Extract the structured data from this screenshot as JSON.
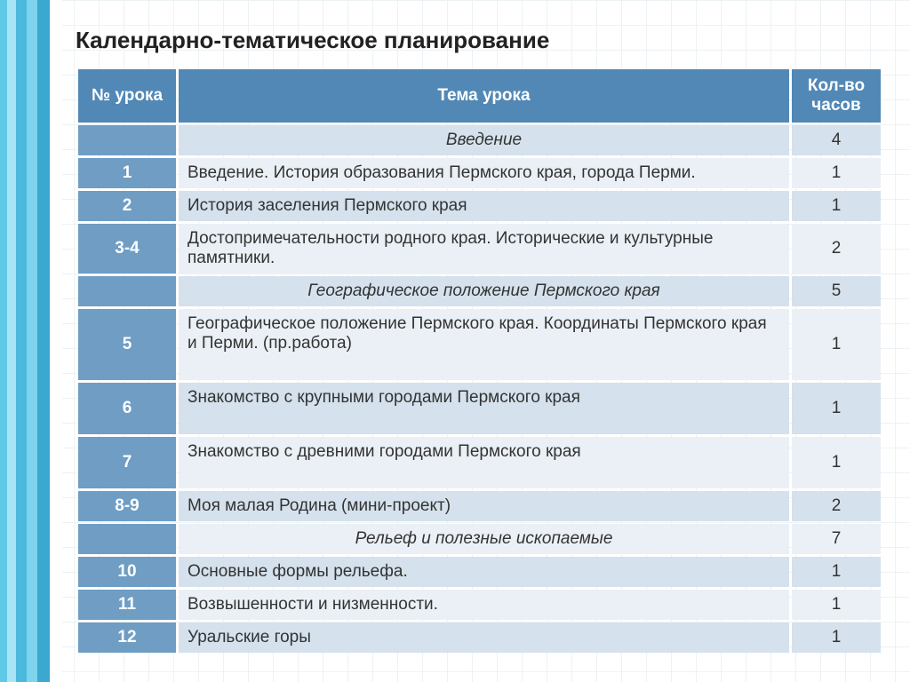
{
  "title": "Календарно-тематическое планирование",
  "colors": {
    "header_bg": "#5288b6",
    "subheader_bg": "#6f9dc4",
    "row_odd_bg": "#d5e1ec",
    "row_even_bg": "#eaf0f6",
    "header_text": "#ffffff",
    "body_text": "#363636"
  },
  "columns": {
    "num": "№ урока",
    "topic": "Тема урока",
    "hours": "Кол-во часов"
  },
  "rows": [
    {
      "num": "",
      "topic": "Введение",
      "hours": "4",
      "section": true
    },
    {
      "num": "1",
      "topic": "Введение. История образования Пермского края, города Перми.",
      "hours": "1"
    },
    {
      "num": "2",
      "topic": "История заселения Пермского края",
      "hours": "1"
    },
    {
      "num": "3-4",
      "topic": "Достопримечательности родного края. Исторические и культурные памятники.",
      "hours": "2"
    },
    {
      "num": "",
      "topic": "Географическое положение Пермского края",
      "hours": "5",
      "section": true
    },
    {
      "num": "5",
      "topic": "Географическое положение Пермского края. Координаты Пермского края и Перми. (пр.работа)",
      "hours": "1",
      "tall": true
    },
    {
      "num": "6",
      "topic": "Знакомство с крупными городами Пермского края",
      "hours": "1",
      "tall": true
    },
    {
      "num": "7",
      "topic": "Знакомство с древними городами Пермского края",
      "hours": "1",
      "tall": true
    },
    {
      "num": "8-9",
      "topic": "Моя малая Родина (мини-проект)",
      "hours": "2"
    },
    {
      "num": "",
      "topic": "Рельеф и полезные ископаемые",
      "hours": "7",
      "section": true
    },
    {
      "num": "10",
      "topic": "Основные формы рельефа.",
      "hours": "1"
    },
    {
      "num": "11",
      "topic": "Возвышенности и низменности.",
      "hours": "1"
    },
    {
      "num": "12",
      "topic": "Уральские горы",
      "hours": "1"
    }
  ]
}
